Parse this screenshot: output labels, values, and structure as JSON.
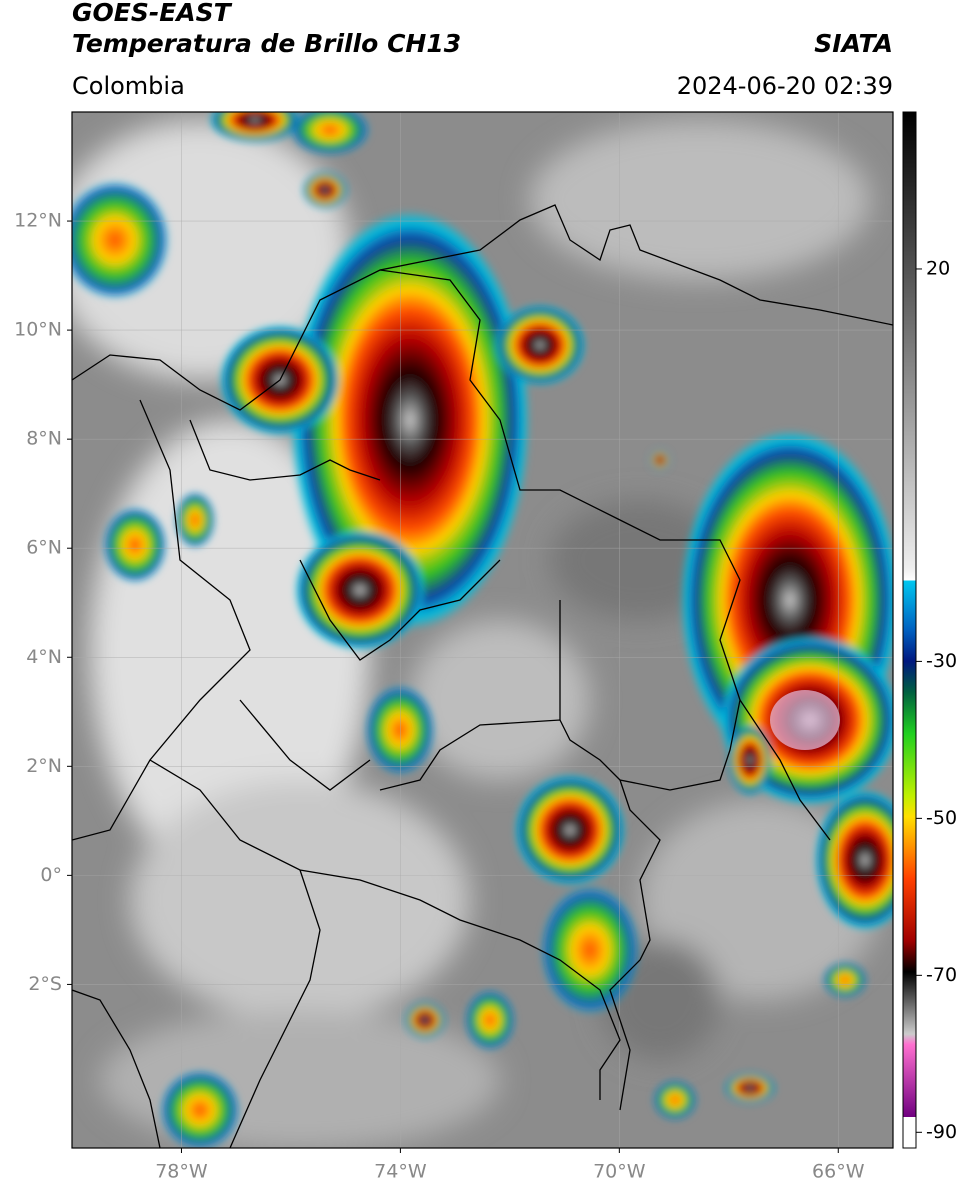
{
  "header": {
    "title": "GOES-EAST",
    "subtitle": "Temperatura de Brillo CH13",
    "region": "Colombia",
    "source": "SIATA",
    "datetime": "2024-06-20 02:39"
  },
  "map": {
    "lonlim": [
      -80,
      -65
    ],
    "latlim": [
      -5,
      14
    ],
    "lonticks": [
      {
        "value": -78,
        "label": "78°W"
      },
      {
        "value": -74,
        "label": "74°W"
      },
      {
        "value": -70,
        "label": "70°W"
      },
      {
        "value": -66,
        "label": "66°W"
      }
    ],
    "latticks": [
      {
        "value": 12,
        "label": "12°N"
      },
      {
        "value": 10,
        "label": "10°N"
      },
      {
        "value": 8,
        "label": "8°N"
      },
      {
        "value": 6,
        "label": "6°N"
      },
      {
        "value": 4,
        "label": "4°N"
      },
      {
        "value": 2,
        "label": "2°N"
      },
      {
        "value": 0,
        "label": "0°"
      },
      {
        "value": -2,
        "label": "2°S"
      }
    ]
  },
  "colorbar": {
    "lim": [
      -92,
      40
    ],
    "ticks": [
      20,
      -30,
      -50,
      -70,
      -90
    ]
  }
}
